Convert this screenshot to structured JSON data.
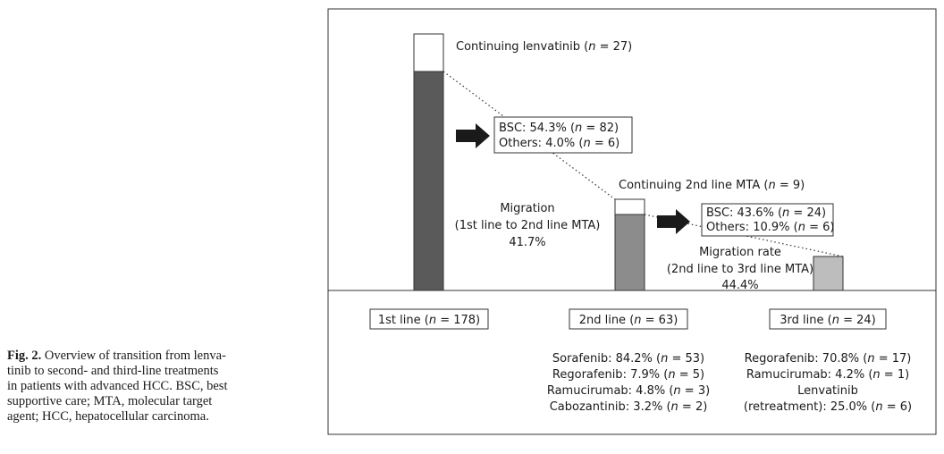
{
  "caption": {
    "label": "Fig. 2.",
    "lines": [
      " Overview of transition from lenva-",
      "tinib to second- and third-line treatments",
      "in patients with advanced HCC. BSC, best",
      "supportive care; MTA, molecular target",
      "agent; HCC, hepatocellular carcinoma."
    ]
  },
  "figure": {
    "continuing_lenvatinib": {
      "pre": "Continuing lenvatinib (",
      "n": "n",
      "post": " = 27)"
    },
    "box1": {
      "bsc": {
        "pre": "BSC: 54.3% (",
        "n": "n",
        "post": " = 82)"
      },
      "others": {
        "pre": "Others: 4.0% (",
        "n": "n",
        "post": " = 6)"
      }
    },
    "continuing_2nd": {
      "pre": "Continuing 2nd line MTA (",
      "n": "n",
      "post": " = 9)"
    },
    "box2": {
      "bsc": {
        "pre": "BSC: 43.6% (",
        "n": "n",
        "post": " = 24)"
      },
      "others": {
        "pre": "Others: 10.9% (",
        "n": "n",
        "post": " = 6)"
      }
    },
    "migration1": [
      "Migration",
      "(1st line to 2nd line MTA)",
      "41.7%"
    ],
    "migration2": [
      "Migration rate",
      "(2nd line to 3rd line MTA)",
      "44.4%"
    ],
    "line_labels": [
      {
        "pre": "1st line (",
        "n": "n",
        "post": " = 178)"
      },
      {
        "pre": "2nd line (",
        "n": "n",
        "post": " = 63)"
      },
      {
        "pre": "3rd line (",
        "n": "n",
        "post": " = 24)"
      }
    ],
    "second_line_drugs": [
      {
        "pre": "Sorafenib: 84.2% (",
        "n": "n",
        "post": " = 53)"
      },
      {
        "pre": "Regorafenib: 7.9% (",
        "n": "n",
        "post": " = 5)"
      },
      {
        "pre": "Ramucirumab: 4.8% (",
        "n": "n",
        "post": " = 3)"
      },
      {
        "pre": "Cabozantinib: 3.2% (",
        "n": "n",
        "post": " = 2)"
      }
    ],
    "third_line_drugs": [
      {
        "pre": "Regorafenib: 70.8% (",
        "n": "n",
        "post": " = 17)"
      },
      {
        "pre": "Ramucirumab: 4.2% (",
        "n": "n",
        "post": " = 1)"
      },
      {
        "pre": "Lenvatinib",
        "n": "",
        "post": ""
      },
      {
        "pre": "(retreatment): 25.0% (",
        "n": "n",
        "post": " = 6)"
      }
    ],
    "colors": {
      "bar1": "#5a5a5a",
      "bar2": "#8c8c8c",
      "bar3": "#bdbdbd",
      "arrow": "#1a1a1a"
    }
  }
}
